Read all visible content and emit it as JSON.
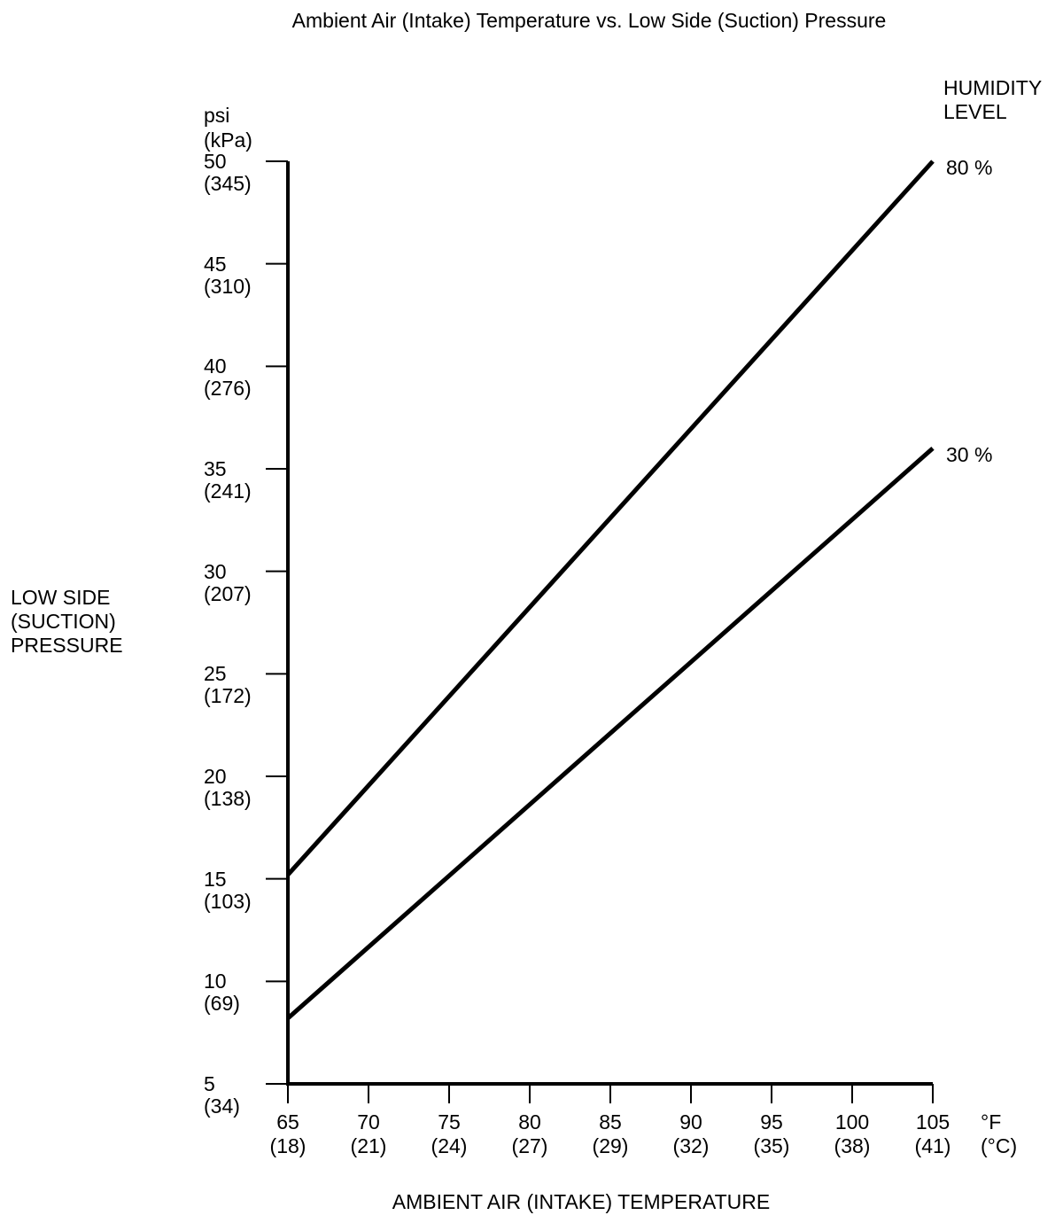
{
  "chart_data": {
    "type": "line",
    "title": "Ambient Air (Intake) Temperature vs. Low Side (Suction) Pressure",
    "xlabel": "AMBIENT AIR (INTAKE) TEMPERATURE",
    "ylabel": "LOW SIDE\n(SUCTION)\nPRESSURE",
    "legend_title": "HUMIDITY\nLEVEL",
    "y_unit_primary": "psi",
    "y_unit_secondary": "(kPa)",
    "x_unit_primary": "°F",
    "x_unit_secondary": "(°C)",
    "xlim": [
      65,
      105
    ],
    "ylim": [
      5,
      50
    ],
    "grid": false,
    "legend_position": "right of line ends",
    "x_ticks": [
      {
        "f": 65,
        "c": 18
      },
      {
        "f": 70,
        "c": 21
      },
      {
        "f": 75,
        "c": 24
      },
      {
        "f": 80,
        "c": 27
      },
      {
        "f": 85,
        "c": 29
      },
      {
        "f": 90,
        "c": 32
      },
      {
        "f": 95,
        "c": 35
      },
      {
        "f": 100,
        "c": 38
      },
      {
        "f": 105,
        "c": 41
      }
    ],
    "y_ticks": [
      {
        "psi": 50,
        "kpa": 345
      },
      {
        "psi": 45,
        "kpa": 310
      },
      {
        "psi": 40,
        "kpa": 276
      },
      {
        "psi": 35,
        "kpa": 241
      },
      {
        "psi": 30,
        "kpa": 207
      },
      {
        "psi": 25,
        "kpa": 172
      },
      {
        "psi": 20,
        "kpa": 138
      },
      {
        "psi": 15,
        "kpa": 103
      },
      {
        "psi": 10,
        "kpa": 69
      },
      {
        "psi": 5,
        "kpa": 34
      }
    ],
    "series": [
      {
        "name": "80 %",
        "x": [
          65,
          105
        ],
        "y": [
          15.2,
          50.0
        ]
      },
      {
        "name": "30 %",
        "x": [
          65,
          105
        ],
        "y": [
          8.2,
          36.0
        ]
      }
    ]
  },
  "colors": {
    "line": "#000000",
    "text": "#000000",
    "background": "#ffffff"
  }
}
